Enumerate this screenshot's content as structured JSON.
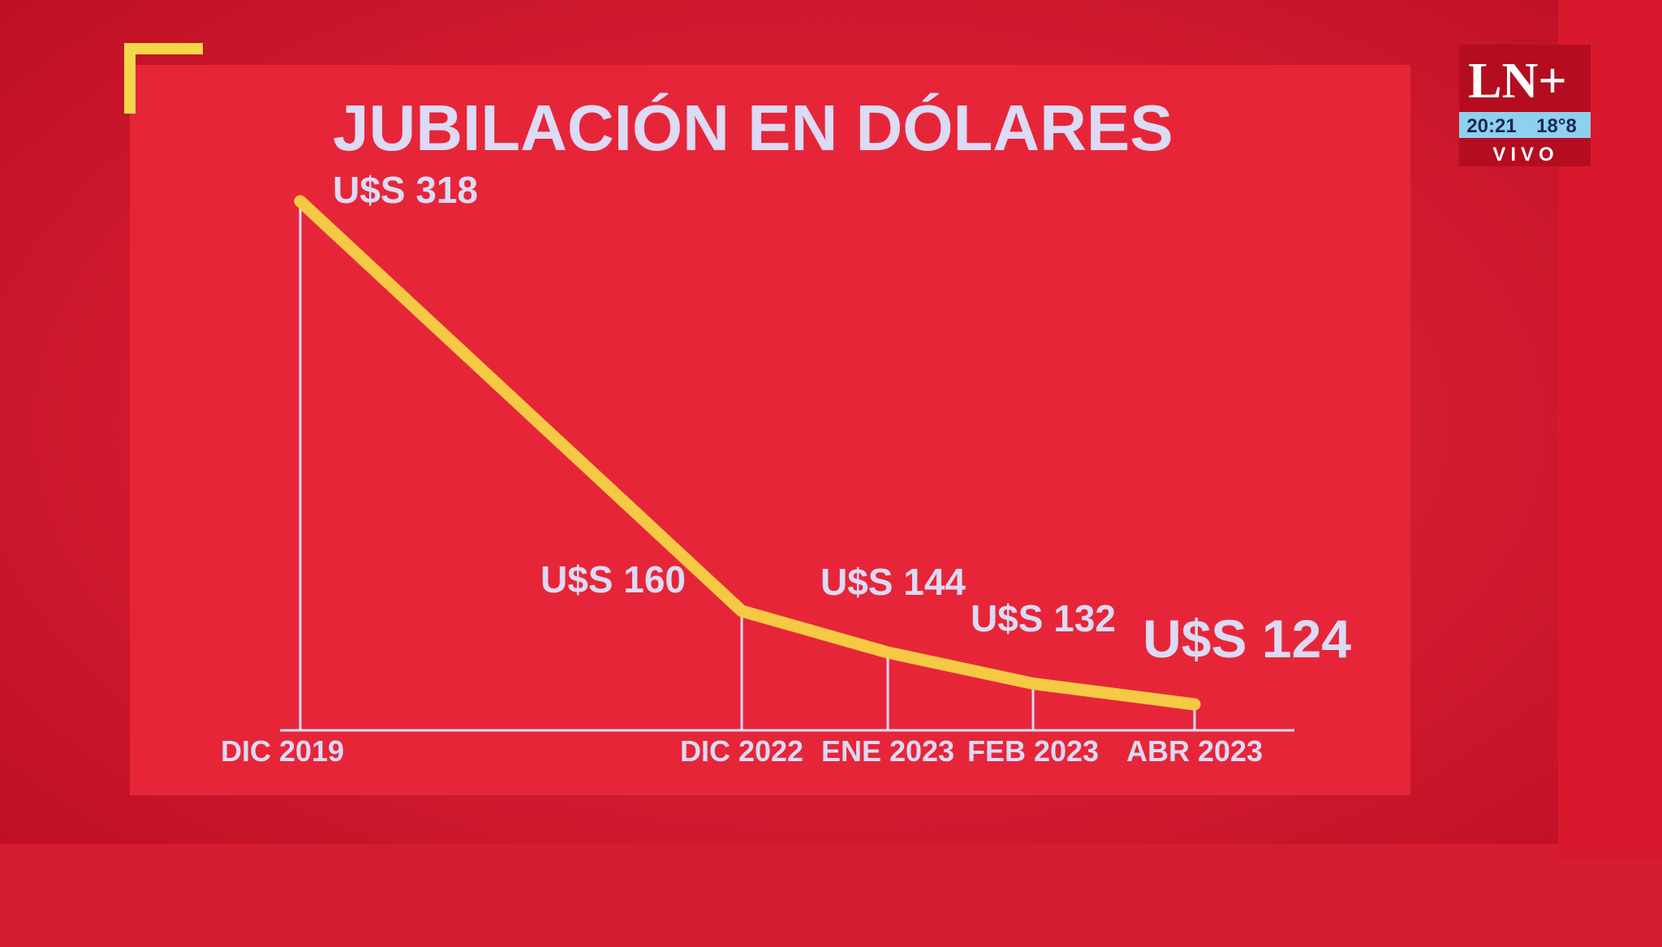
{
  "chart_data": {
    "type": "line",
    "title": "JUBILACIÓN EN DÓLARES",
    "categories": [
      "DIC 2019",
      "DIC 2022",
      "ENE 2023",
      "FEB 2023",
      "ABR 2023"
    ],
    "values": [
      318,
      160,
      144,
      132,
      124
    ],
    "value_labels": [
      "U$S 318",
      "U$S 160",
      "U$S 144",
      "U$S 132",
      "U$S 124"
    ],
    "color": "#f6c945"
  },
  "overlay": {
    "channel": "LN+",
    "time": "20:21",
    "temperature": "18°8",
    "live": "VIVO"
  }
}
